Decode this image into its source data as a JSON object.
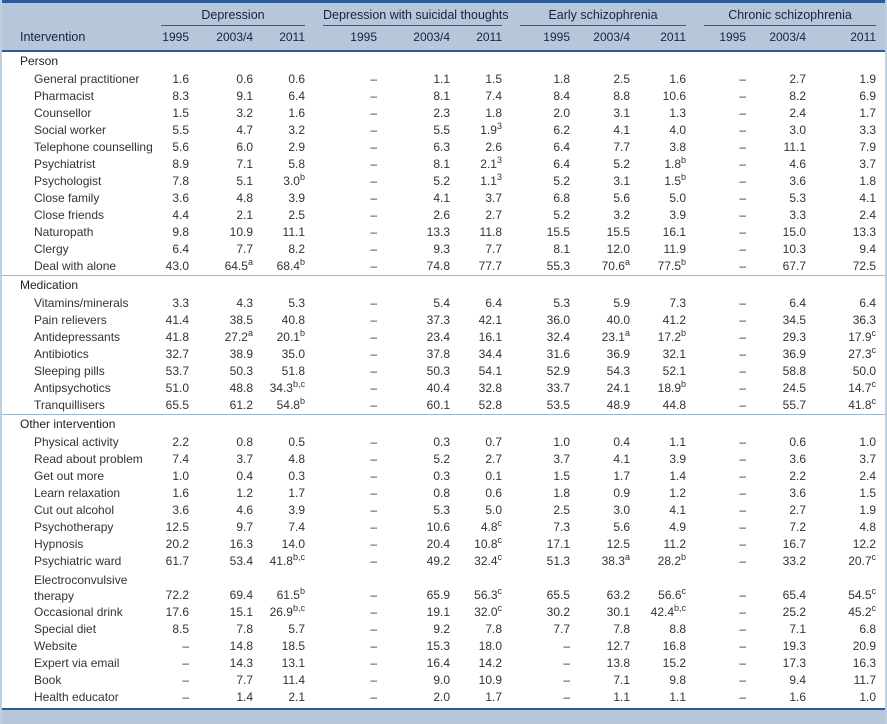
{
  "colors": {
    "rule_dark": "#2c5c99",
    "header_band": "#b6c7db",
    "rule_light": "#9db5d1",
    "side_border": "#bcd0e2",
    "body_text": "#333333"
  },
  "table": {
    "row_header": "Intervention",
    "groups": [
      {
        "label": "Depression",
        "years": [
          "1995",
          "2003/4",
          "2011"
        ]
      },
      {
        "label": "Depression with suicidal thoughts",
        "years": [
          "1995",
          "2003/4",
          "2011"
        ]
      },
      {
        "label": "Early schizophrenia",
        "years": [
          "1995",
          "2003/4",
          "2011"
        ]
      },
      {
        "label": "Chronic schizophrenia",
        "years": [
          "1995",
          "2003/4",
          "2011"
        ]
      }
    ],
    "sections": [
      {
        "label": "Person",
        "rows": [
          {
            "label": "General practitioner",
            "values": [
              "1.6",
              "0.6",
              "0.6",
              "–",
              "1.1",
              "1.5",
              "1.8",
              "2.5",
              "1.6",
              "–",
              "2.7",
              "1.9"
            ]
          },
          {
            "label": "Pharmacist",
            "values": [
              "8.3",
              "9.1",
              "6.4",
              "–",
              "8.1",
              "7.4",
              "8.4",
              "8.8",
              "10.6",
              "–",
              "8.2",
              "6.9"
            ]
          },
          {
            "label": "Counsellor",
            "values": [
              "1.5",
              "3.2",
              "1.6",
              "–",
              "2.3",
              "1.8",
              "2.0",
              "3.1",
              "1.3",
              "–",
              "2.4",
              "1.7"
            ]
          },
          {
            "label": "Social worker",
            "values": [
              "5.5",
              "4.7",
              "3.2",
              "–",
              "5.5",
              "1.9^3",
              "6.2",
              "4.1",
              "4.0",
              "–",
              "3.0",
              "3.3"
            ]
          },
          {
            "label": "Telephone counselling",
            "values": [
              "5.6",
              "6.0",
              "2.9",
              "–",
              "6.3",
              "2.6",
              "6.4",
              "7.7",
              "3.8",
              "–",
              "11.1",
              "7.9"
            ]
          },
          {
            "label": "Psychiatrist",
            "values": [
              "8.9",
              "7.1",
              "5.8",
              "–",
              "8.1",
              "2.1^3",
              "6.4",
              "5.2",
              "1.8^b",
              "–",
              "4.6",
              "3.7"
            ]
          },
          {
            "label": "Psychologist",
            "values": [
              "7.8",
              "5.1",
              "3.0^b",
              "–",
              "5.2",
              "1.1^3",
              "5.2",
              "3.1",
              "1.5^b",
              "–",
              "3.6",
              "1.8"
            ]
          },
          {
            "label": "Close family",
            "values": [
              "3.6",
              "4.8",
              "3.9",
              "–",
              "4.1",
              "3.7",
              "6.8",
              "5.6",
              "5.0",
              "–",
              "5.3",
              "4.1"
            ]
          },
          {
            "label": "Close friends",
            "values": [
              "4.4",
              "2.1",
              "2.5",
              "–",
              "2.6",
              "2.7",
              "5.2",
              "3.2",
              "3.9",
              "–",
              "3.3",
              "2.4"
            ]
          },
          {
            "label": "Naturopath",
            "values": [
              "9.8",
              "10.9",
              "11.1",
              "–",
              "13.3",
              "11.8",
              "15.5",
              "15.5",
              "16.1",
              "–",
              "15.0",
              "13.3"
            ]
          },
          {
            "label": "Clergy",
            "values": [
              "6.4",
              "7.7",
              "8.2",
              "–",
              "9.3",
              "7.7",
              "8.1",
              "12.0",
              "11.9",
              "–",
              "10.3",
              "9.4"
            ]
          },
          {
            "label": "Deal with alone",
            "values": [
              "43.0",
              "64.5^a",
              "68.4^b",
              "–",
              "74.8",
              "77.7",
              "55.3",
              "70.6^a",
              "77.5^b",
              "–",
              "67.7",
              "72.5"
            ]
          }
        ]
      },
      {
        "label": "Medication",
        "rows": [
          {
            "label": "Vitamins/minerals",
            "values": [
              "3.3",
              "4.3",
              "5.3",
              "–",
              "5.4",
              "6.4",
              "5.3",
              "5.9",
              "7.3",
              "–",
              "6.4",
              "6.4"
            ]
          },
          {
            "label": "Pain relievers",
            "values": [
              "41.4",
              "38.5",
              "40.8",
              "–",
              "37.3",
              "42.1",
              "36.0",
              "40.0",
              "41.2",
              "–",
              "34.5",
              "36.3"
            ]
          },
          {
            "label": "Antidepressants",
            "values": [
              "41.8",
              "27.2^a",
              "20.1^b",
              "–",
              "23.4",
              "16.1",
              "32.4",
              "23.1^a",
              "17.2^b",
              "–",
              "29.3",
              "17.9^c"
            ]
          },
          {
            "label": "Antibiotics",
            "values": [
              "32.7",
              "38.9",
              "35.0",
              "–",
              "37.8",
              "34.4",
              "31.6",
              "36.9",
              "32.1",
              "–",
              "36.9",
              "27.3^c"
            ]
          },
          {
            "label": "Sleeping pills",
            "values": [
              "53.7",
              "50.3",
              "51.8",
              "–",
              "50.3",
              "54.1",
              "52.9",
              "54.3",
              "52.1",
              "–",
              "58.8",
              "50.0"
            ]
          },
          {
            "label": "Antipsychotics",
            "values": [
              "51.0",
              "48.8",
              "34.3^b,c",
              "–",
              "40.4",
              "32.8",
              "33.7",
              "24.1",
              "18.9^b",
              "–",
              "24.5",
              "14.7^c"
            ]
          },
          {
            "label": "Tranquillisers",
            "values": [
              "65.5",
              "61.2",
              "54.8^b",
              "–",
              "60.1",
              "52.8",
              "53.5",
              "48.9",
              "44.8",
              "–",
              "55.7",
              "41.8^c"
            ]
          }
        ]
      },
      {
        "label": "Other intervention",
        "rows": [
          {
            "label": "Physical activity",
            "values": [
              "2.2",
              "0.8",
              "0.5",
              "–",
              "0.3",
              "0.7",
              "1.0",
              "0.4",
              "1.1",
              "–",
              "0.6",
              "1.0"
            ]
          },
          {
            "label": "Read about problem",
            "values": [
              "7.4",
              "3.7",
              "4.8",
              "–",
              "5.2",
              "2.7",
              "3.7",
              "4.1",
              "3.9",
              "–",
              "3.6",
              "3.7"
            ]
          },
          {
            "label": "Get out more",
            "values": [
              "1.0",
              "0.4",
              "0.3",
              "–",
              "0.3",
              "0.1",
              "1.5",
              "1.7",
              "1.4",
              "–",
              "2.2",
              "2.4"
            ]
          },
          {
            "label": "Learn relaxation",
            "values": [
              "1.6",
              "1.2",
              "1.7",
              "–",
              "0.8",
              "0.6",
              "1.8",
              "0.9",
              "1.2",
              "–",
              "3.6",
              "1.5"
            ]
          },
          {
            "label": "Cut out alcohol",
            "values": [
              "3.6",
              "4.6",
              "3.9",
              "–",
              "5.3",
              "5.0",
              "2.5",
              "3.0",
              "4.1",
              "–",
              "2.7",
              "1.9"
            ]
          },
          {
            "label": "Psychotherapy",
            "values": [
              "12.5",
              "9.7",
              "7.4",
              "–",
              "10.6",
              "4.8^c",
              "7.3",
              "5.6",
              "4.9",
              "–",
              "7.2",
              "4.8"
            ]
          },
          {
            "label": "Hypnosis",
            "values": [
              "20.2",
              "16.3",
              "14.0",
              "–",
              "20.4",
              "10.8^c",
              "17.1",
              "12.5",
              "11.2",
              "–",
              "16.7",
              "12.2"
            ]
          },
          {
            "label": "Psychiatric ward",
            "values": [
              "61.7",
              "53.4",
              "41.8^b,c",
              "–",
              "49.2",
              "32.4^c",
              "51.3",
              "38.3^a",
              "28.2^b",
              "–",
              "33.2",
              "20.7^c"
            ]
          },
          {
            "label": "Electroconvulsive therapy",
            "wrap": true,
            "values": [
              "72.2",
              "69.4",
              "61.5^b",
              "–",
              "65.9",
              "56.3^c",
              "65.5",
              "63.2",
              "56.6^c",
              "–",
              "65.4",
              "54.5^c"
            ]
          },
          {
            "label": "Occasional drink",
            "values": [
              "17.6",
              "15.1",
              "26.9^b,c",
              "–",
              "19.1",
              "32.0^c",
              "30.2",
              "30.1",
              "42.4^b,c",
              "–",
              "25.2",
              "45.2^c"
            ]
          },
          {
            "label": "Special diet",
            "values": [
              "8.5",
              "7.8",
              "5.7",
              "–",
              "9.2",
              "7.8",
              "7.7",
              "7.8",
              "8.8",
              "–",
              "7.1",
              "6.8"
            ]
          },
          {
            "label": "Website",
            "values": [
              "–",
              "14.8",
              "18.5",
              "–",
              "15.3",
              "18.0",
              "–",
              "12.7",
              "16.8",
              "–",
              "19.3",
              "20.9"
            ]
          },
          {
            "label": "Expert via email",
            "values": [
              "–",
              "14.3",
              "13.1",
              "–",
              "16.4",
              "14.2",
              "–",
              "13.8",
              "15.2",
              "–",
              "17.3",
              "16.3"
            ]
          },
          {
            "label": "Book",
            "values": [
              "–",
              "7.7",
              "11.4",
              "–",
              "9.0",
              "10.9",
              "–",
              "7.1",
              "9.8",
              "–",
              "9.4",
              "11.7"
            ]
          },
          {
            "label": "Health educator",
            "values": [
              "–",
              "1.4",
              "2.1",
              "–",
              "2.0",
              "1.7",
              "–",
              "1.1",
              "1.1",
              "–",
              "1.6",
              "1.0"
            ]
          }
        ]
      }
    ]
  }
}
